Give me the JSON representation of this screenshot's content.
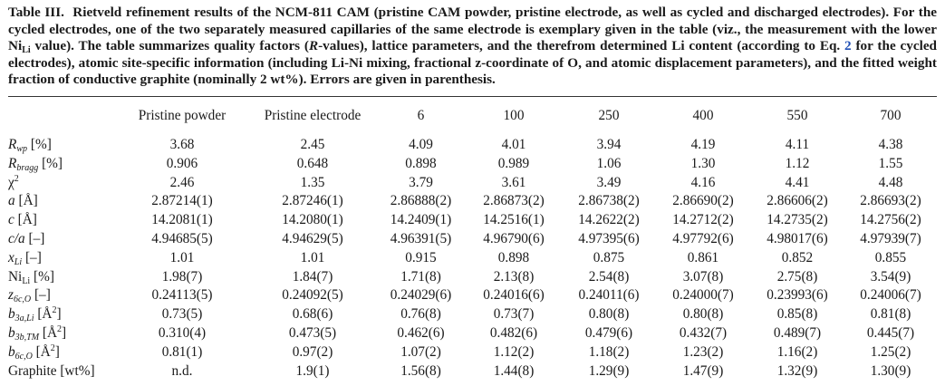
{
  "caption": {
    "table_label": "Table III.",
    "part1": "Rietveld refinement results of the NCM-811 CAM (pristine CAM powder, pristine electrode, as well as cycled and discharged electrodes). For the cycled electrodes, one of the two separately measured capillaries of the same electrode is exemplary given in the table (viz., the measurement with the lower Ni",
    "part1_sub": "Li",
    "part2": "value). The table summarizes quality factors (",
    "part2_italic": "R",
    "part3": "-values), lattice parameters, and the therefrom determined Li content (according to Eq.",
    "eq_ref": "2",
    "part4": "for the cycled electrodes), atomic site-specific information (including Li-Ni mixing, fractional z-coordinate of O, and atomic displacement parameters), and the fitted weight fraction of conductive graphite (nominally 2 wt%). Errors are given in parenthesis."
  },
  "columns": [
    "Pristine powder",
    "Pristine electrode",
    "6",
    "100",
    "250",
    "400",
    "550",
    "700"
  ],
  "row_labels": [
    {
      "main": "R",
      "sub": "wp",
      "rest": " [%]"
    },
    {
      "main": "R",
      "sub": "bragg",
      "rest": " [%]"
    },
    {
      "main": "χ",
      "sup": "2",
      "rest": ""
    },
    {
      "main": "a",
      "rest": " [Å]"
    },
    {
      "main": "c",
      "rest": " [Å]"
    },
    {
      "main": "c/a",
      "rest": " [–]"
    },
    {
      "main": "x",
      "sub": "Li",
      "rest": " [–]"
    },
    {
      "main": "Ni",
      "sub": "Li",
      "rest": " [%]"
    },
    {
      "main": "z",
      "sub": "6c,O",
      "rest": " [–]"
    },
    {
      "main": "b",
      "sub": "3a,Li",
      "rest": " [Å",
      "sup2": "2",
      "end": "]"
    },
    {
      "main": "b",
      "sub": "3b,TM",
      "rest": " [Å",
      "sup2": "2",
      "end": "]"
    },
    {
      "main": "b",
      "sub": "6c,O",
      "rest": " [Å",
      "sup2": "2",
      "end": "]"
    },
    {
      "main": "Graphite [wt%]",
      "rest": ""
    }
  ],
  "rows": [
    [
      "3.68",
      "2.45",
      "4.09",
      "4.01",
      "3.94",
      "4.19",
      "4.11",
      "4.38"
    ],
    [
      "0.906",
      "0.648",
      "0.898",
      "0.989",
      "1.06",
      "1.30",
      "1.12",
      "1.55"
    ],
    [
      "2.46",
      "1.35",
      "3.79",
      "3.61",
      "3.49",
      "4.16",
      "4.41",
      "4.48"
    ],
    [
      "2.87214(1)",
      "2.87246(1)",
      "2.86888(2)",
      "2.86873(2)",
      "2.86738(2)",
      "2.86690(2)",
      "2.86606(2)",
      "2.86693(2)"
    ],
    [
      "14.2081(1)",
      "14.2080(1)",
      "14.2409(1)",
      "14.2516(1)",
      "14.2622(2)",
      "14.2712(2)",
      "14.2735(2)",
      "14.2756(2)"
    ],
    [
      "4.94685(5)",
      "4.94629(5)",
      "4.96391(5)",
      "4.96790(6)",
      "4.97395(6)",
      "4.97792(6)",
      "4.98017(6)",
      "4.97939(7)"
    ],
    [
      "1.01",
      "1.01",
      "0.915",
      "0.898",
      "0.875",
      "0.861",
      "0.852",
      "0.855"
    ],
    [
      "1.98(7)",
      "1.84(7)",
      "1.71(8)",
      "2.13(8)",
      "2.54(8)",
      "3.07(8)",
      "2.75(8)",
      "3.54(9)"
    ],
    [
      "0.24113(5)",
      "0.24092(5)",
      "0.24029(6)",
      "0.24016(6)",
      "0.24011(6)",
      "0.24000(7)",
      "0.23993(6)",
      "0.24006(7)"
    ],
    [
      "0.73(5)",
      "0.68(6)",
      "0.76(8)",
      "0.73(7)",
      "0.80(8)",
      "0.80(8)",
      "0.85(8)",
      "0.81(8)"
    ],
    [
      "0.310(4)",
      "0.473(5)",
      "0.462(6)",
      "0.482(6)",
      "0.479(6)",
      "0.432(7)",
      "0.489(7)",
      "0.445(7)"
    ],
    [
      "0.81(1)",
      "0.97(2)",
      "1.07(2)",
      "1.12(2)",
      "1.18(2)",
      "1.23(2)",
      "1.16(2)",
      "1.25(2)"
    ],
    [
      "n.d.",
      "1.9(1)",
      "1.56(8)",
      "1.44(8)",
      "1.29(9)",
      "1.47(9)",
      "1.32(9)",
      "1.30(9)"
    ]
  ],
  "colors": {
    "text": "#1a1a1a",
    "link": "#1f4fb5"
  }
}
